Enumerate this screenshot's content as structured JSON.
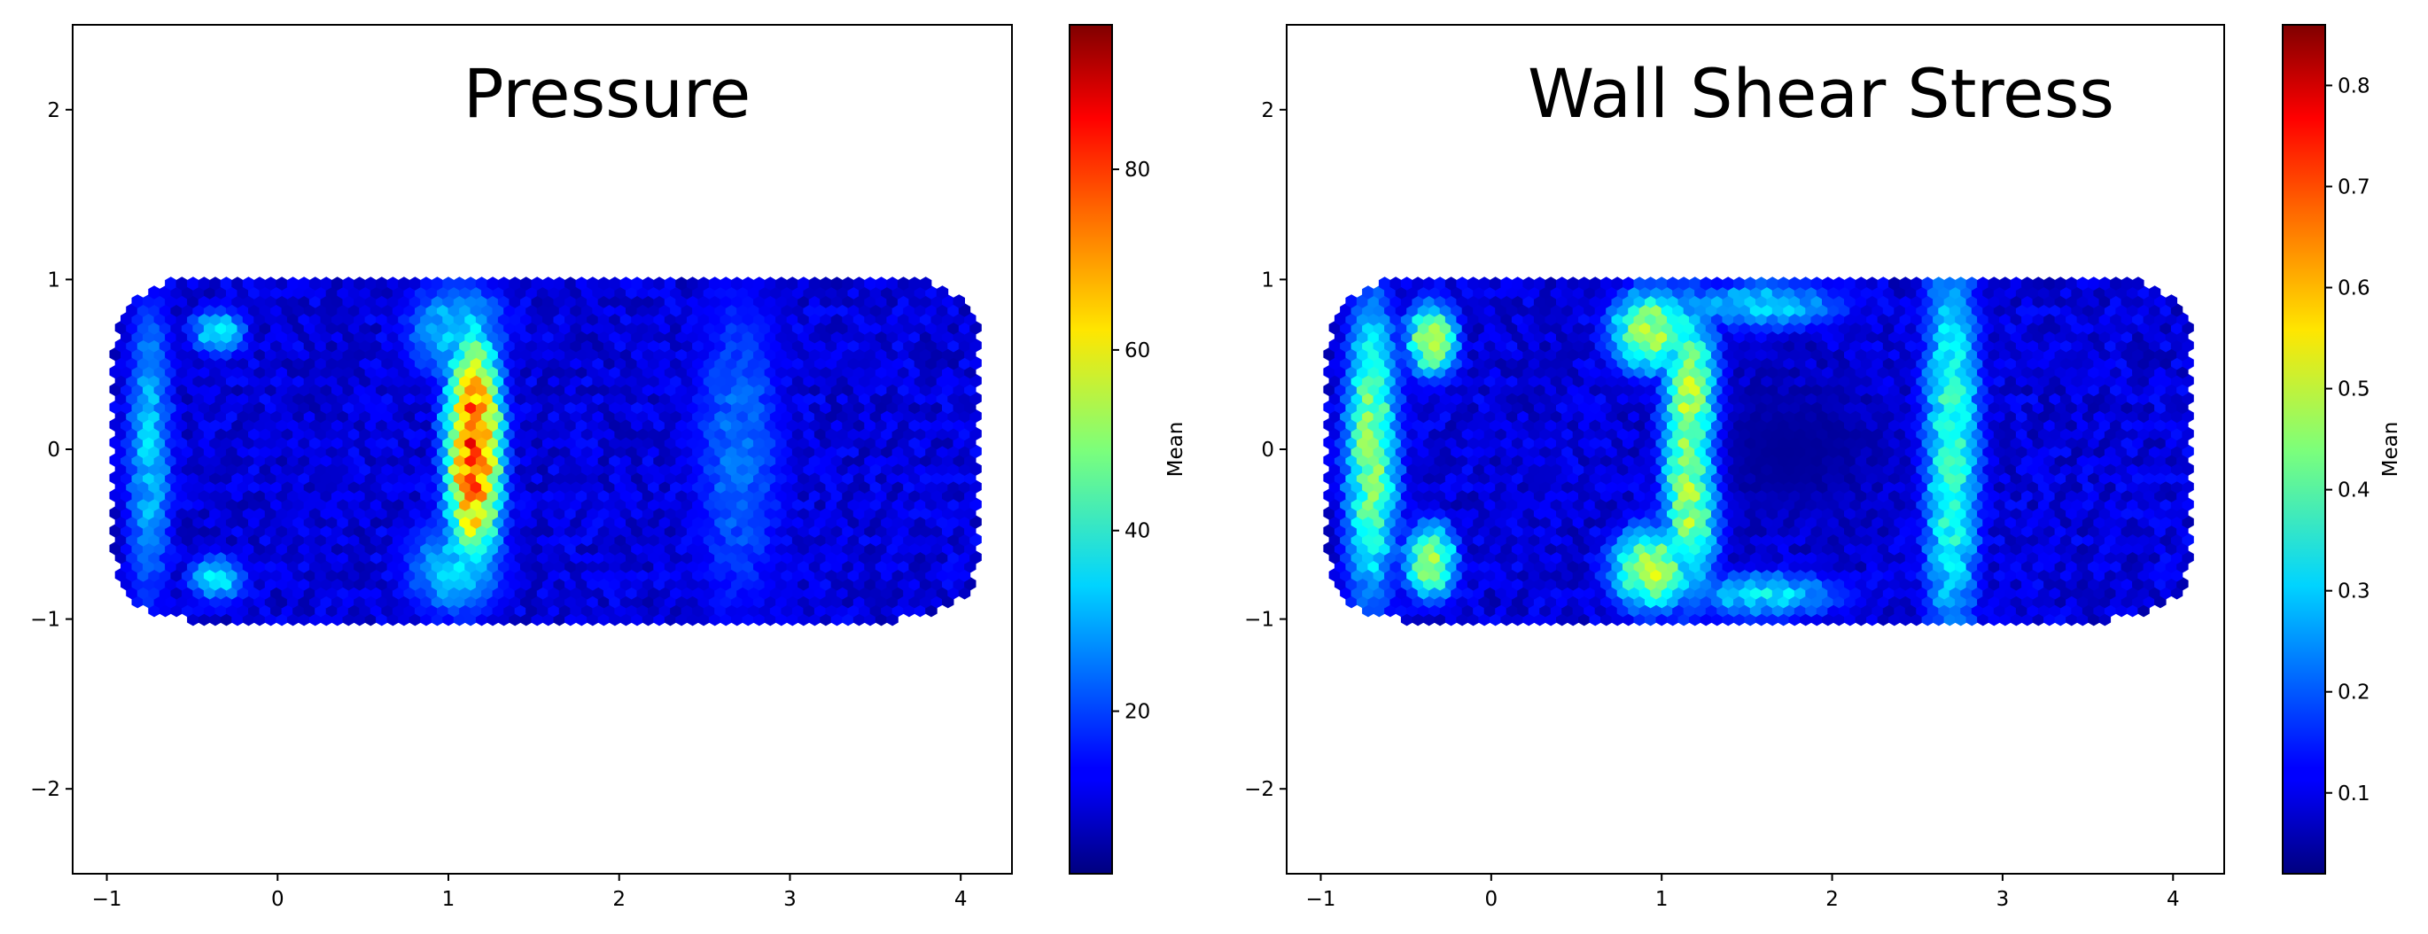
{
  "chart_data": [
    {
      "type": "heatmap",
      "subtype": "hexbin",
      "title": "Pressure",
      "xlim": [
        -1.2,
        4.3
      ],
      "ylim": [
        -2.5,
        2.5
      ],
      "xticks": [
        -1,
        0,
        1,
        2,
        3,
        4
      ],
      "yticks": [
        -2,
        -1,
        0,
        1,
        2
      ],
      "xtick_labels": [
        "−1",
        "0",
        "1",
        "2",
        "3",
        "4"
      ],
      "ytick_labels": [
        "−2",
        "−1",
        "0",
        "1",
        "2"
      ],
      "colormap": "jet",
      "colorbar": {
        "label": "Mean",
        "min": 2,
        "max": 96,
        "ticks": [
          20,
          40,
          60,
          80
        ],
        "tick_labels": [
          "20",
          "40",
          "60",
          "80"
        ]
      },
      "car_extent": {
        "x": [
          -0.95,
          4.1
        ],
        "y": [
          -1.0,
          1.0
        ]
      },
      "high_value_regions": [
        {
          "x": 1.15,
          "y": 0.0,
          "sx": 0.13,
          "sy": 0.55,
          "value": 80
        },
        {
          "x": 1.05,
          "y": 0.7,
          "sx": 0.25,
          "sy": 0.25,
          "value": 34
        },
        {
          "x": 1.05,
          "y": -0.7,
          "sx": 0.25,
          "sy": 0.25,
          "value": 34
        },
        {
          "x": -0.75,
          "y": 0.0,
          "sx": 0.12,
          "sy": 0.8,
          "value": 32
        },
        {
          "x": -0.35,
          "y": 0.7,
          "sx": 0.14,
          "sy": 0.12,
          "value": 36
        },
        {
          "x": -0.35,
          "y": -0.75,
          "sx": 0.14,
          "sy": 0.12,
          "value": 36
        },
        {
          "x": 2.7,
          "y": 0.0,
          "sx": 0.25,
          "sy": 0.9,
          "value": 24
        }
      ]
    },
    {
      "type": "heatmap",
      "subtype": "hexbin",
      "title": "Wall Shear Stress",
      "xlim": [
        -1.2,
        4.3
      ],
      "ylim": [
        -2.5,
        2.5
      ],
      "xticks": [
        -1,
        0,
        1,
        2,
        3,
        4
      ],
      "yticks": [
        -2,
        -1,
        0,
        1,
        2
      ],
      "xtick_labels": [
        "−1",
        "0",
        "1",
        "2",
        "3",
        "4"
      ],
      "ytick_labels": [
        "−2",
        "−1",
        "0",
        "1",
        "2"
      ],
      "colormap": "jet",
      "colorbar": {
        "label": "Mean",
        "min": 0.02,
        "max": 0.86,
        "ticks": [
          0.1,
          0.2,
          0.3,
          0.4,
          0.5,
          0.6,
          0.7,
          0.8
        ],
        "tick_labels": [
          "0.1",
          "0.2",
          "0.3",
          "0.4",
          "0.5",
          "0.6",
          "0.7",
          "0.8"
        ]
      },
      "car_extent": {
        "x": [
          -0.95,
          4.1
        ],
        "y": [
          -1.0,
          1.0
        ]
      },
      "high_value_regions": [
        {
          "x": 1.18,
          "y": 0.0,
          "sx": 0.13,
          "sy": 0.6,
          "value": 0.66
        },
        {
          "x": 0.95,
          "y": 0.7,
          "sx": 0.2,
          "sy": 0.2,
          "value": 0.5
        },
        {
          "x": 0.95,
          "y": -0.7,
          "sx": 0.2,
          "sy": 0.2,
          "value": 0.5
        },
        {
          "x": -0.7,
          "y": 0.0,
          "sx": 0.13,
          "sy": 0.75,
          "value": 0.45
        },
        {
          "x": -0.35,
          "y": 0.65,
          "sx": 0.12,
          "sy": 0.18,
          "value": 0.5
        },
        {
          "x": -0.35,
          "y": -0.65,
          "sx": 0.12,
          "sy": 0.18,
          "value": 0.5
        },
        {
          "x": 2.7,
          "y": 0.0,
          "sx": 0.14,
          "sy": 1.0,
          "value": 0.4
        },
        {
          "x": 1.6,
          "y": 0.85,
          "sx": 0.4,
          "sy": 0.12,
          "value": 0.32
        },
        {
          "x": 1.6,
          "y": -0.85,
          "sx": 0.4,
          "sy": 0.12,
          "value": 0.32
        }
      ],
      "low_value_regions": [
        {
          "x": 1.75,
          "y": 0.0,
          "sx": 0.4,
          "sy": 0.3,
          "value": 0.04
        }
      ]
    }
  ]
}
